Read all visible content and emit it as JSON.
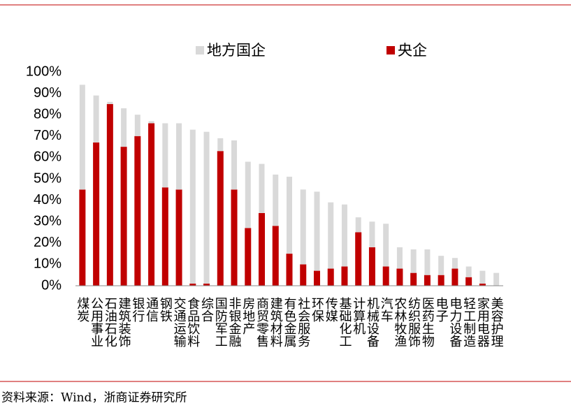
{
  "chart_data": {
    "type": "stacked_bar",
    "categories": [
      "煤炭",
      "公用事业",
      "石油石化",
      "建筑装饰",
      "银行",
      "通信",
      "钢铁",
      "交通运输",
      "食品饮料",
      "综合",
      "国防军工",
      "非银金融",
      "房地产",
      "商贸零售",
      "建筑材料",
      "有色金属",
      "社会服务",
      "环保",
      "传媒",
      "基础化工",
      "计算机",
      "机械设备",
      "汽车",
      "农林牧渔",
      "纺织服饰",
      "医药生物",
      "电子",
      "电力设备",
      "轻工制造",
      "家用电器",
      "美容护理"
    ],
    "series": [
      {
        "name": "地方国企",
        "color": "#d9d9d9",
        "values": [
          49,
          22,
          1,
          18,
          10,
          1,
          30,
          31,
          72,
          71,
          6,
          23,
          31,
          23,
          24,
          36,
          35,
          37,
          31,
          29,
          7,
          12,
          20,
          10,
          11,
          12,
          9,
          5,
          5,
          6,
          6
        ]
      },
      {
        "name": "央企",
        "color": "#c00000",
        "values": [
          45,
          67,
          85,
          65,
          70,
          76,
          46,
          45,
          1,
          1,
          63,
          45,
          27,
          34,
          28,
          15,
          10,
          7,
          8,
          9,
          25,
          18,
          9,
          8,
          6,
          5,
          5,
          8,
          4,
          1,
          0
        ]
      }
    ],
    "ylim": [
      0,
      100
    ],
    "yticks": [
      {
        "value": 0,
        "label": "0%"
      },
      {
        "value": 10,
        "label": "10%"
      },
      {
        "value": 20,
        "label": "20%"
      },
      {
        "value": 30,
        "label": "30%"
      },
      {
        "value": 40,
        "label": "40%"
      },
      {
        "value": 50,
        "label": "50%"
      },
      {
        "value": 60,
        "label": "60%"
      },
      {
        "value": 70,
        "label": "70%"
      },
      {
        "value": 80,
        "label": "80%"
      },
      {
        "value": 90,
        "label": "90%"
      },
      {
        "value": 100,
        "label": "100%"
      }
    ],
    "legend_position": "top",
    "source": "资料来源：Wind，浙商证券研究所"
  }
}
